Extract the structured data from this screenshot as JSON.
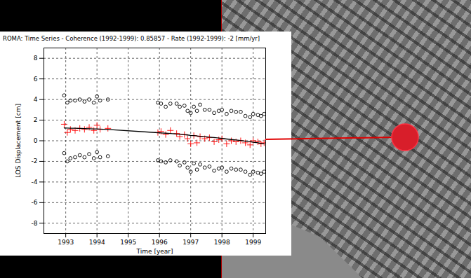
{
  "chart_data": {
    "type": "scatter",
    "title": "ROMA: Time Series - Coherence (1992-1999): 0.85857 - Rate (1992-1999): -2 [mm/yr]",
    "x_label": "Time [year]",
    "y_label": "LOS Displacement [cm]",
    "x": [
      1992.95,
      1993.05,
      1993.15,
      1993.3,
      1993.45,
      1993.6,
      1993.75,
      1993.9,
      1994.0,
      1994.1,
      1994.35,
      1995.95,
      1996.05,
      1996.2,
      1996.35,
      1996.55,
      1996.65,
      1996.8,
      1996.9,
      1997.0,
      1997.1,
      1997.2,
      1997.3,
      1997.45,
      1997.6,
      1997.75,
      1997.9,
      1998.0,
      1998.15,
      1998.3,
      1998.45,
      1998.6,
      1998.75,
      1998.9,
      1999.0,
      1999.15,
      1999.25,
      1999.35
    ],
    "series": [
      {
        "type": "scatter",
        "marker": "circle",
        "color": "#000000",
        "values": [
          4.4,
          3.7,
          3.9,
          3.9,
          4.0,
          3.8,
          4.0,
          3.7,
          4.3,
          3.9,
          4.0,
          3.7,
          3.6,
          3.3,
          3.6,
          3.6,
          3.3,
          3.4,
          2.9,
          2.7,
          3.3,
          2.9,
          3.5,
          3.0,
          3.0,
          2.7,
          2.9,
          3.0,
          2.6,
          2.9,
          2.8,
          2.8,
          2.4,
          2.3,
          2.6,
          2.5,
          2.4,
          2.6
        ]
      },
      {
        "type": "scatter",
        "marker": "circle",
        "color": "#000000",
        "values": [
          -1.2,
          -2.0,
          -1.7,
          -1.6,
          -1.4,
          -1.6,
          -1.3,
          -1.7,
          -1.1,
          -1.6,
          -1.5,
          -1.9,
          -2.0,
          -2.1,
          -1.9,
          -2.0,
          -2.4,
          -2.1,
          -2.6,
          -3.0,
          -2.2,
          -2.8,
          -2.3,
          -2.6,
          -2.5,
          -2.9,
          -2.7,
          -2.6,
          -3.0,
          -2.7,
          -2.8,
          -2.8,
          -3.0,
          -3.3,
          -3.0,
          -3.1,
          -3.2,
          -3.0
        ]
      },
      {
        "type": "scatter",
        "marker": "plus",
        "color": "#ff0000",
        "values": [
          1.6,
          0.8,
          1.1,
          1.0,
          1.2,
          1.1,
          1.3,
          1.0,
          1.5,
          1.1,
          1.2,
          0.8,
          0.9,
          0.6,
          1.0,
          0.7,
          0.4,
          0.6,
          0.2,
          -0.3,
          0.5,
          -0.2,
          0.4,
          0.2,
          0.3,
          -0.1,
          0.1,
          0.2,
          -0.3,
          0.0,
          -0.1,
          0.0,
          -0.2,
          -0.4,
          0.0,
          -0.1,
          -0.3,
          -0.2
        ]
      },
      {
        "type": "line",
        "color": "#000000",
        "line_style": "solid",
        "values": [
          1.24,
          1.23,
          1.22,
          1.21,
          1.2,
          1.18,
          1.16,
          1.15,
          1.14,
          1.13,
          1.1,
          0.78,
          0.76,
          0.73,
          0.7,
          0.66,
          0.63,
          0.59,
          0.56,
          0.52,
          0.5,
          0.47,
          0.44,
          0.4,
          0.35,
          0.31,
          0.26,
          0.22,
          0.17,
          0.12,
          0.07,
          0.02,
          -0.04,
          -0.1,
          -0.15,
          -0.2,
          -0.25,
          -0.3
        ]
      }
    ],
    "xlim": [
      1992.3,
      1999.4
    ],
    "xticks": [
      1993,
      1994,
      1995,
      1996,
      1997,
      1998,
      1999
    ],
    "ylim": [
      -9,
      9
    ],
    "yticks": [
      -8,
      -6,
      -4,
      -2,
      0,
      2,
      4,
      6,
      8
    ],
    "grid": true
  }
}
